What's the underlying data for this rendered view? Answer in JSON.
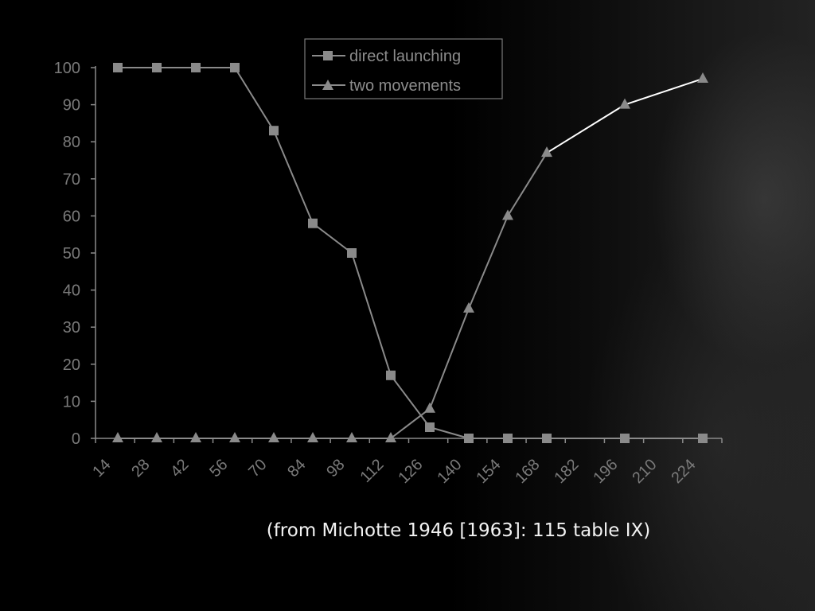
{
  "slide": {
    "background_color": "#000000",
    "caption": "(from Michotte 1946 [1963]: 115 table IX)"
  },
  "chart_data": {
    "type": "line",
    "title": "",
    "xlabel": "",
    "ylabel": "",
    "x_tick_labels": [
      "14",
      "28",
      "42",
      "56",
      "70",
      "84",
      "98",
      "112",
      "126",
      "140",
      "154",
      "168",
      "182",
      "196",
      "210",
      "224"
    ],
    "y_ticks": [
      0,
      10,
      20,
      30,
      40,
      50,
      60,
      70,
      80,
      90,
      100
    ],
    "ylim": [
      0,
      100
    ],
    "grid": false,
    "legend_placement": "top-center",
    "series": [
      {
        "name": "direct launching",
        "marker": "square",
        "color": "#8a8a8a",
        "x": [
          14,
          28,
          42,
          56,
          70,
          84,
          98,
          112,
          126,
          140,
          154,
          168,
          196,
          224
        ],
        "values": [
          100,
          100,
          100,
          100,
          83,
          58,
          50,
          17,
          3,
          0,
          0,
          0,
          0,
          0
        ]
      },
      {
        "name": "two movements",
        "marker": "triangle",
        "color": "#8a8a8a",
        "highlight_color": "#ffffff",
        "x": [
          14,
          28,
          42,
          56,
          70,
          84,
          98,
          112,
          126,
          140,
          154,
          168,
          196,
          224
        ],
        "values": [
          0,
          0,
          0,
          0,
          0,
          0,
          0,
          0,
          8,
          35,
          60,
          77,
          90,
          97
        ]
      }
    ]
  }
}
